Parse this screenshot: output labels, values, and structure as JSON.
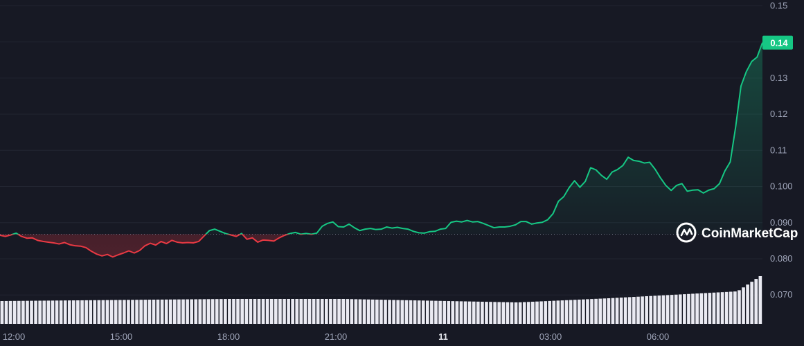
{
  "chart_data": {
    "type": "line",
    "y_axis_side": "right",
    "y_ticks": [
      "0.070",
      "0.080",
      "0.090",
      "0.100",
      "0.11",
      "0.12",
      "0.13",
      "0.14",
      "0.15"
    ],
    "x_tick_labels": [
      "12:00",
      "15:00",
      "18:00",
      "21:00",
      "11",
      "03:00",
      "06:00"
    ],
    "bold_x_tick": "11",
    "ylim": [
      0.062,
      0.1516
    ],
    "reference_price": 0.0868,
    "last_price": 0.1398,
    "last_price_label": "0.14",
    "grid": true,
    "series": [
      {
        "values": [
          0.0865,
          0.0862,
          0.0866,
          0.0871,
          0.0862,
          0.0857,
          0.0858,
          0.0851,
          0.0848,
          0.0846,
          0.0844,
          0.0841,
          0.0845,
          0.0839,
          0.0836,
          0.0835,
          0.0831,
          0.0821,
          0.0813,
          0.0808,
          0.0812,
          0.0805,
          0.0811,
          0.0816,
          0.0822,
          0.0816,
          0.0823,
          0.0836,
          0.0843,
          0.0838,
          0.0848,
          0.0842,
          0.0851,
          0.0846,
          0.0844,
          0.0845,
          0.0844,
          0.0848,
          0.0863,
          0.0878,
          0.0882,
          0.0876,
          0.087,
          0.0866,
          0.0862,
          0.087,
          0.0854,
          0.0858,
          0.0846,
          0.0852,
          0.0851,
          0.0849,
          0.0858,
          0.0865,
          0.087,
          0.0873,
          0.0868,
          0.087,
          0.0868,
          0.0871,
          0.089,
          0.0898,
          0.0902,
          0.0889,
          0.0888,
          0.0896,
          0.0886,
          0.0878,
          0.0882,
          0.0884,
          0.0881,
          0.0882,
          0.0888,
          0.0885,
          0.0887,
          0.0884,
          0.0882,
          0.0876,
          0.0872,
          0.0871,
          0.0875,
          0.0876,
          0.0882,
          0.0884,
          0.0901,
          0.0904,
          0.0902,
          0.0906,
          0.0902,
          0.0903,
          0.0898,
          0.0892,
          0.0886,
          0.0888,
          0.0888,
          0.089,
          0.0894,
          0.0903,
          0.0903,
          0.0896,
          0.0899,
          0.0901,
          0.0908,
          0.0925,
          0.0959,
          0.0972,
          0.0997,
          0.1016,
          0.0998,
          0.1014,
          0.1052,
          0.1046,
          0.1031,
          0.102,
          0.104,
          0.1047,
          0.1058,
          0.1081,
          0.1072,
          0.107,
          0.1065,
          0.1067,
          0.1048,
          0.1024,
          0.1003,
          0.0989,
          0.1003,
          0.1008,
          0.0987,
          0.099,
          0.0991,
          0.0982,
          0.099,
          0.0994,
          0.1008,
          0.1043,
          0.1068,
          0.1164,
          0.1278,
          0.1318,
          0.1346,
          0.1358,
          0.1398
        ]
      }
    ],
    "volume_bars": 181
  },
  "watermark": {
    "text": "CoinMarketCap"
  },
  "colors": {
    "background": "#171924",
    "up": "#16c784",
    "down": "#ea3943",
    "volume": "#eaeaf2",
    "grid": "#222531",
    "tick_text": "#a1a7bb",
    "reference_line": "#6b7080"
  }
}
